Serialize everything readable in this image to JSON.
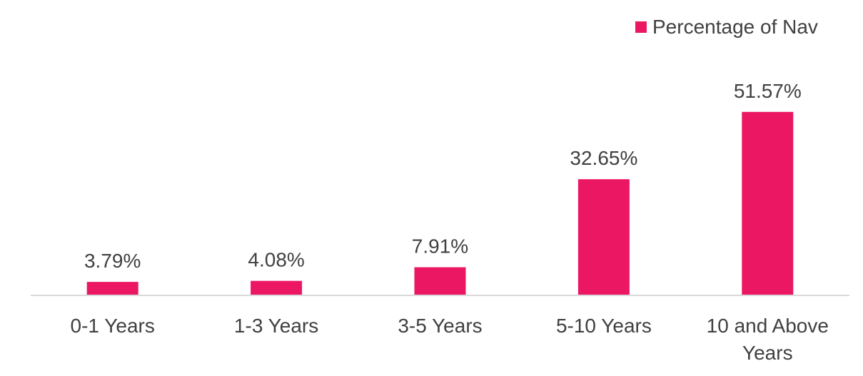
{
  "chart_data": {
    "type": "bar",
    "title": "",
    "xlabel": "",
    "ylabel": "",
    "categories": [
      [
        "0-1 Years"
      ],
      [
        "1-3 Years"
      ],
      [
        "3-5 Years"
      ],
      [
        "5-10 Years"
      ],
      [
        "10 and Above",
        "Years"
      ]
    ],
    "series": [
      {
        "name": "Percentage of Nav",
        "values": [
          3.79,
          4.08,
          7.91,
          32.65,
          51.57
        ],
        "labels": [
          "3.79%",
          "4.08%",
          "7.91%",
          "32.65%",
          "51.57%"
        ],
        "color": "#EC1763"
      }
    ],
    "ylim": [
      0,
      75
    ],
    "grid": false,
    "legend_position": "top-right",
    "axis_color": "#D9D9D9",
    "text_color": "#404040"
  }
}
